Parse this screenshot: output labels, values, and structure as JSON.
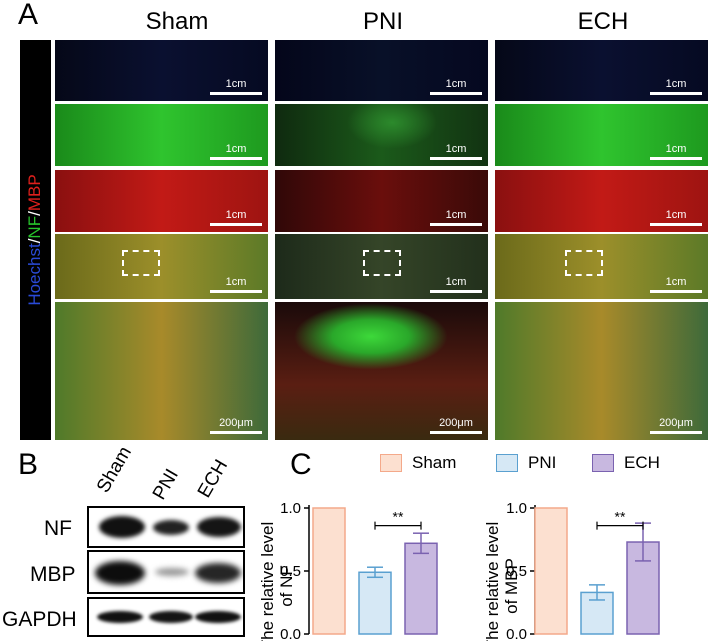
{
  "panel_a": {
    "letter": "A",
    "columns": [
      "Sham",
      "PNI",
      "ECH"
    ],
    "stain_label": {
      "hoechst": "Hoechst",
      "slash1": "/",
      "nf": "NF",
      "slash2": "/",
      "mbp": "MBP"
    },
    "scale_cm": "1cm",
    "scale_um": "200μm",
    "colors": {
      "hoechst": "#2a4bd7",
      "nf": "#27c42b",
      "mbp": "#e0201c"
    }
  },
  "panel_b": {
    "letter": "B",
    "lanes": [
      "Sham",
      "PNI",
      "ECH"
    ],
    "rows": [
      "NF",
      "MBP",
      "GAPDH"
    ]
  },
  "panel_c": {
    "letter": "C",
    "legend": [
      {
        "label": "Sham",
        "color": "#fce0d0",
        "edge": "#f4a98a"
      },
      {
        "label": "PNI",
        "color": "#d6e8f5",
        "edge": "#5aa0d0"
      },
      {
        "label": "ECH",
        "color": "#c8b8e0",
        "edge": "#7a62b0"
      }
    ],
    "significance": "**"
  },
  "chart_data": [
    {
      "type": "bar",
      "ylabel_line1": "The relative level",
      "ylabel_line2": "of NF",
      "categories": [
        "Sham",
        "PNI",
        "ECH"
      ],
      "values": [
        1.0,
        0.49,
        0.72
      ],
      "errors": [
        0,
        0.04,
        0.08
      ],
      "ylim": [
        0,
        1.0
      ],
      "yticks": [
        "0.0",
        "0.5",
        "1.0"
      ],
      "significance": "**"
    },
    {
      "type": "bar",
      "ylabel_line1": "The relative level",
      "ylabel_line2": "of MBP",
      "categories": [
        "Sham",
        "PNI",
        "ECH"
      ],
      "values": [
        1.0,
        0.33,
        0.73
      ],
      "errors": [
        0,
        0.06,
        0.15
      ],
      "ylim": [
        0,
        1.0
      ],
      "yticks": [
        "0.0",
        "0.5",
        "1.0"
      ],
      "significance": "**"
    }
  ]
}
